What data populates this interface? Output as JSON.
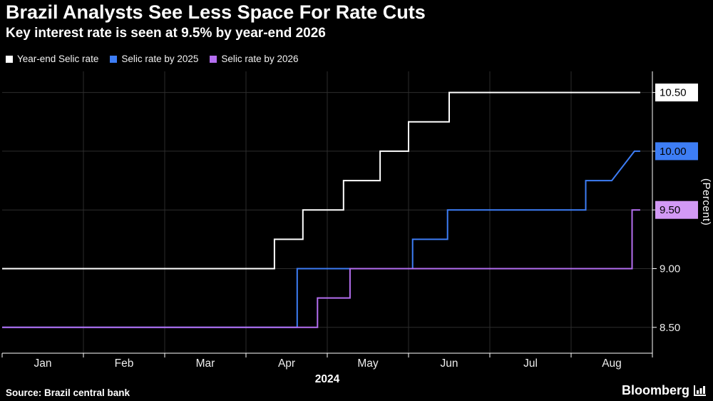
{
  "header": {
    "title": "Brazil Analysts See Less Space For Rate Cuts",
    "subtitle": "Key interest rate is seen at 9.5% by year-end 2026"
  },
  "legend": [
    {
      "label": "Year-end Selic rate",
      "color": "#ffffff"
    },
    {
      "label": "Selic rate by 2025",
      "color": "#3d7df5"
    },
    {
      "label": "Selic rate by 2026",
      "color": "#b46ef0"
    }
  ],
  "footer": {
    "source": "Source: Brazil central bank",
    "brand": "Bloomberg"
  },
  "chart_data": {
    "type": "line",
    "step": true,
    "title": "Brazil Analysts See Less Space For Rate Cuts",
    "subtitle": "Key interest rate is seen at 9.5% by year-end 2026",
    "ylabel": "(Percent)",
    "x_axis_year": "2024",
    "x_unit": "months from Jan 1 2024",
    "x_tick_labels": [
      "Jan",
      "Feb",
      "Mar",
      "Apr",
      "May",
      "Jun",
      "Jul",
      "Aug"
    ],
    "xlim": [
      0,
      8
    ],
    "ylim": [
      8.28,
      10.68
    ],
    "grid": true,
    "grid_color": "#2d2d2d",
    "axis_color": "#ffffff",
    "tick_label_color": "#ededed",
    "legend_position": "top-left",
    "yticks": [
      {
        "value": 8.5,
        "label": "8.50",
        "style": "plain"
      },
      {
        "value": 9.0,
        "label": "9.00",
        "style": "plain"
      },
      {
        "value": 9.5,
        "label": "9.50",
        "style": "box",
        "bg": "#d299f5",
        "fg": "#000000"
      },
      {
        "value": 10.0,
        "label": "10.00",
        "style": "box",
        "bg": "#3d7df5",
        "fg": "#000000"
      },
      {
        "value": 10.5,
        "label": "10.50",
        "style": "box",
        "bg": "#ffffff",
        "fg": "#000000"
      }
    ],
    "series": [
      {
        "name": "Year-end Selic rate",
        "color": "#ffffff",
        "end_value": 10.5,
        "points": [
          [
            0,
            9.0
          ],
          [
            3.35,
            9.0
          ],
          [
            3.35,
            9.25
          ],
          [
            3.7,
            9.25
          ],
          [
            3.7,
            9.5
          ],
          [
            4.2,
            9.5
          ],
          [
            4.2,
            9.75
          ],
          [
            4.65,
            9.75
          ],
          [
            4.65,
            10.0
          ],
          [
            5.0,
            10.0
          ],
          [
            5.0,
            10.25
          ],
          [
            5.5,
            10.25
          ],
          [
            5.5,
            10.5
          ],
          [
            7.85,
            10.5
          ]
        ]
      },
      {
        "name": "Selic rate by 2025",
        "color": "#3d7df5",
        "end_value": 10.0,
        "points": [
          [
            0,
            8.5
          ],
          [
            3.63,
            8.5
          ],
          [
            3.63,
            9.0
          ],
          [
            5.05,
            9.0
          ],
          [
            5.05,
            9.25
          ],
          [
            5.48,
            9.25
          ],
          [
            5.48,
            9.5
          ],
          [
            7.18,
            9.5
          ],
          [
            7.18,
            9.75
          ],
          [
            7.5,
            9.75
          ],
          [
            7.78,
            10.0
          ],
          [
            7.85,
            10.0
          ]
        ]
      },
      {
        "name": "Selic rate by 2026",
        "color": "#b46ef0",
        "end_value": 9.5,
        "points": [
          [
            0,
            8.5
          ],
          [
            3.88,
            8.5
          ],
          [
            3.88,
            8.75
          ],
          [
            4.28,
            8.75
          ],
          [
            4.28,
            9.0
          ],
          [
            7.75,
            9.0
          ],
          [
            7.75,
            9.5
          ],
          [
            7.85,
            9.5
          ]
        ]
      }
    ]
  }
}
